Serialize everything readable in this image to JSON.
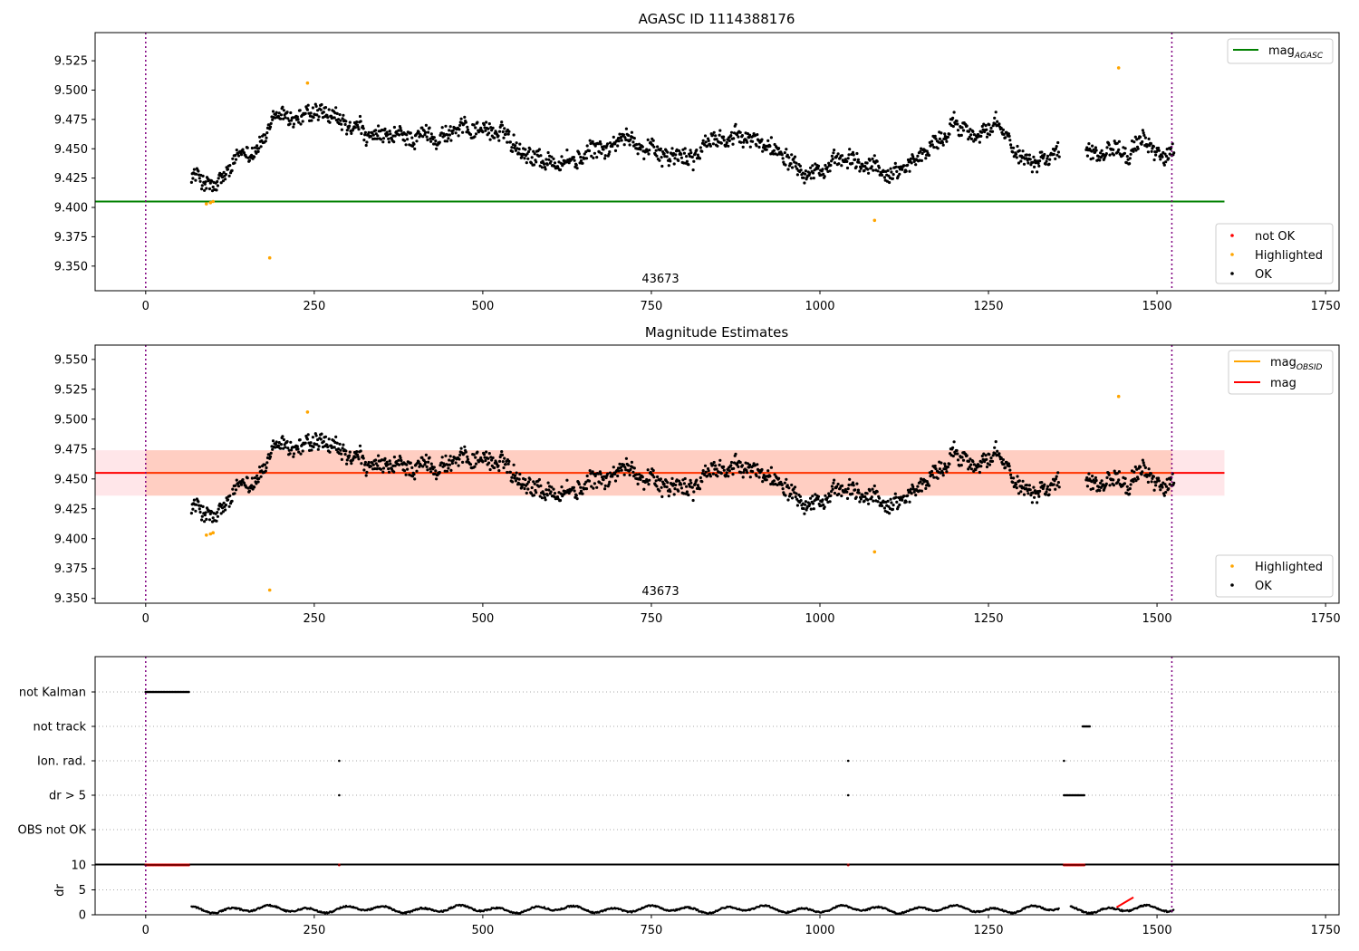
{
  "chart_data": [
    {
      "type": "scatter",
      "title": "AGASC ID 1114388176",
      "annotation": "43673",
      "xlim": [
        -75,
        1770
      ],
      "ylim": [
        9.329,
        9.549
      ],
      "xticks": [
        0,
        250,
        500,
        750,
        1000,
        1250,
        1500,
        1750
      ],
      "yticks": [
        9.35,
        9.375,
        9.4,
        9.425,
        9.45,
        9.475,
        9.5,
        9.525
      ],
      "vlines": [
        0,
        1522
      ],
      "hline": {
        "label": "mag",
        "label_sub": "AGASC",
        "value": 9.405,
        "x_range": [
          -75,
          1600
        ],
        "color": "#008000"
      },
      "legend_lines": [
        {
          "label": "mag",
          "sub": "AGASC",
          "color": "#008000"
        }
      ],
      "legend_points": [
        {
          "label": "not OK",
          "color": "#ff0000"
        },
        {
          "label": "Highlighted",
          "color": "#ffa500"
        },
        {
          "label": "OK",
          "color": "#000000"
        }
      ],
      "highlighted_points": [
        [
          90,
          9.403
        ],
        [
          96,
          9.404
        ],
        [
          100,
          9.405
        ],
        [
          184,
          9.357
        ],
        [
          240,
          9.506
        ],
        [
          1081,
          9.389
        ],
        [
          1443,
          9.519
        ]
      ],
      "ok_series": {
        "segments": [
          [
            68,
            1355
          ],
          [
            1395,
            1525
          ]
        ],
        "anchors": [
          [
            68,
            9.43
          ],
          [
            90,
            9.42
          ],
          [
            105,
            9.415
          ],
          [
            140,
            9.44
          ],
          [
            175,
            9.46
          ],
          [
            200,
            9.475
          ],
          [
            250,
            9.477
          ],
          [
            300,
            9.465
          ],
          [
            350,
            9.455
          ],
          [
            400,
            9.46
          ],
          [
            450,
            9.465
          ],
          [
            500,
            9.47
          ],
          [
            550,
            9.455
          ],
          [
            600,
            9.44
          ],
          [
            640,
            9.44
          ],
          [
            700,
            9.455
          ],
          [
            750,
            9.455
          ],
          [
            800,
            9.44
          ],
          [
            850,
            9.46
          ],
          [
            900,
            9.455
          ],
          [
            950,
            9.45
          ],
          [
            1000,
            9.435
          ],
          [
            1050,
            9.435
          ],
          [
            1100,
            9.43
          ],
          [
            1150,
            9.445
          ],
          [
            1200,
            9.47
          ],
          [
            1250,
            9.47
          ],
          [
            1300,
            9.445
          ],
          [
            1355,
            9.45
          ],
          [
            1400,
            9.45
          ],
          [
            1450,
            9.455
          ],
          [
            1525,
            9.445
          ]
        ],
        "step": 1.0,
        "jitter": 0.012
      }
    },
    {
      "type": "scatter",
      "title": "Magnitude Estimates",
      "annotation": "43673",
      "xlim": [
        -75,
        1770
      ],
      "ylim": [
        9.346,
        9.562
      ],
      "xticks": [
        0,
        250,
        500,
        750,
        1000,
        1250,
        1500,
        1750
      ],
      "yticks": [
        9.35,
        9.375,
        9.4,
        9.425,
        9.45,
        9.475,
        9.5,
        9.525,
        9.55
      ],
      "vlines": [
        0,
        1522
      ],
      "hline": {
        "label": "mag",
        "value": 9.455,
        "x_range": [
          -75,
          1600
        ],
        "color": "#ff0000"
      },
      "band_outer": {
        "y": [
          9.436,
          9.474
        ],
        "x_range": [
          -75,
          1600
        ],
        "color": "#ffb6c1"
      },
      "band_inner": {
        "y": [
          9.436,
          9.474
        ],
        "x_range": [
          0,
          1522
        ],
        "color": "#ffa07a"
      },
      "legend_lines": [
        {
          "label": "mag",
          "sub": "OBSID",
          "color": "#ffa500"
        },
        {
          "label": "mag",
          "color": "#ff0000"
        }
      ],
      "legend_points": [
        {
          "label": "Highlighted",
          "color": "#ffa500"
        },
        {
          "label": "OK",
          "color": "#000000"
        }
      ],
      "highlighted_points": [
        [
          90,
          9.403
        ],
        [
          96,
          9.404
        ],
        [
          100,
          9.405
        ],
        [
          184,
          9.357
        ],
        [
          240,
          9.506
        ],
        [
          1081,
          9.389
        ],
        [
          1443,
          9.519
        ]
      ],
      "ok_series": "same_as_panel_1"
    },
    {
      "type": "scatter",
      "categories": [
        "not Kalman",
        "not track",
        "Ion. rad.",
        "dr > 5",
        "OBS not OK"
      ],
      "xlim": [
        -75,
        1770
      ],
      "vlines": [
        0,
        1522
      ],
      "flags": {
        "not Kalman": [
          [
            0,
            65
          ]
        ],
        "not track": [
          [
            1390,
            1400
          ]
        ],
        "Ion. rad.": [
          [
            287,
            287
          ],
          [
            1042,
            1042
          ],
          [
            1362,
            1362
          ]
        ],
        "dr > 5": [
          [
            287,
            287
          ],
          [
            1042,
            1042
          ],
          [
            1362,
            1392
          ]
        ],
        "OBS not OK": []
      }
    },
    {
      "type": "scatter",
      "ylabel": "dr",
      "xlim": [
        -75,
        1770
      ],
      "ylim": [
        0,
        10
      ],
      "xticks": [
        0,
        250,
        500,
        750,
        1000,
        1250,
        1500,
        1750
      ],
      "yticks": [
        0,
        5,
        10
      ],
      "vlines": [
        0,
        1522
      ],
      "clip_markers": [
        [
          0,
          65
        ],
        [
          287,
          287
        ],
        [
          1042,
          1042
        ],
        [
          1362,
          1392
        ]
      ],
      "red_segment": [
        [
          1440,
          1.5
        ],
        [
          1465,
          3.5
        ]
      ],
      "dr_segments": [
        [
          68,
          1355
        ],
        [
          1372,
          1525
        ]
      ]
    }
  ]
}
